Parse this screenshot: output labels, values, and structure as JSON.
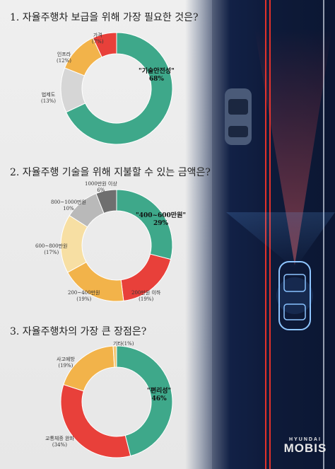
{
  "brand": {
    "top": "HYUNDAI",
    "main": "MOBIS"
  },
  "colors": {
    "teal": "#3ea88a",
    "red": "#e8403a",
    "orange": "#f2b34a",
    "lightgray": "#d6d6d6",
    "darkgray": "#6f6f6f",
    "midgray": "#b9b9b9",
    "cream": "#f7dfa3",
    "beige": "#f3c877"
  },
  "chart_data": [
    {
      "type": "pie",
      "title": "1. 자율주행차 보급을 위해 가장 필요한 것은?",
      "categories": [
        "\"기술안전성\"",
        "법제도",
        "인프라",
        "가격"
      ],
      "values": [
        68,
        13,
        12,
        7
      ],
      "value_labels": [
        "68%",
        "(13%)",
        "(12%)",
        "(7%)"
      ]
    },
    {
      "type": "pie",
      "title": "2. 자율주행 기술을 위해 지불할 수 있는 금액은?",
      "categories": [
        "\"400~600만원\"",
        "200만원 이하",
        "200~400만원",
        "600~800만원",
        "800~1000만원",
        "1000만원 이상"
      ],
      "values": [
        29,
        19,
        19,
        17,
        10,
        6
      ],
      "value_labels": [
        "29%",
        "(19%)",
        "(19%)",
        "(17%)",
        "10%",
        "6%"
      ]
    },
    {
      "type": "pie",
      "title": "3. 자율주행차의 가장 큰 장점은?",
      "categories": [
        "\"편리성\"",
        "교통체증 완화",
        "사고예방",
        "기타"
      ],
      "values": [
        46,
        34,
        19,
        1
      ],
      "value_labels": [
        "46%",
        "(34%)",
        "(19%)",
        "(1%)"
      ]
    }
  ]
}
